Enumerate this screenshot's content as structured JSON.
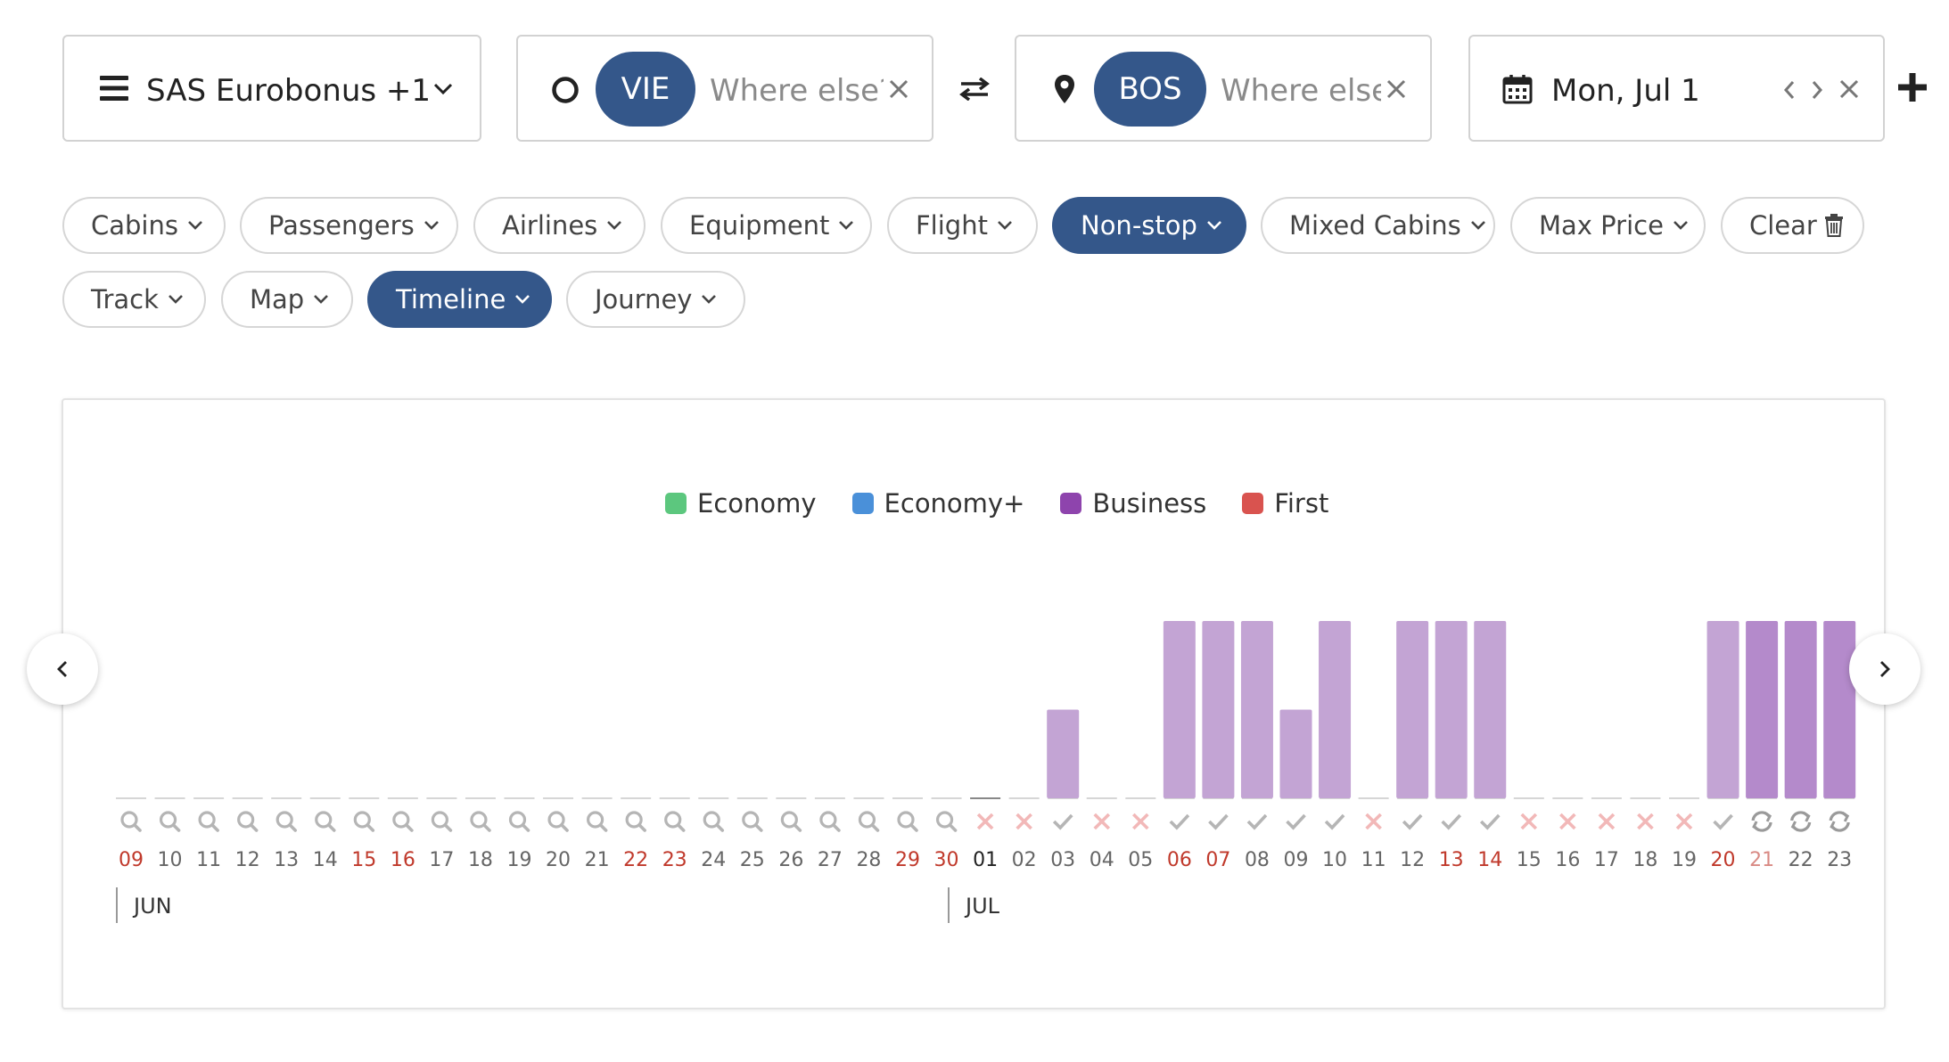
{
  "program_selector": {
    "label": "SAS Eurobonus +1"
  },
  "origin": {
    "code": "VIE",
    "placeholder": "Where else?"
  },
  "destination": {
    "code": "BOS",
    "placeholder": "Where else?"
  },
  "date": {
    "label": "Mon, Jul 1"
  },
  "filters": [
    {
      "label": "Cabins",
      "active": false
    },
    {
      "label": "Passengers",
      "active": false
    },
    {
      "label": "Airlines",
      "active": false
    },
    {
      "label": "Equipment",
      "active": false
    },
    {
      "label": "Flight",
      "active": false
    },
    {
      "label": "Non-stop",
      "active": true
    },
    {
      "label": "Mixed Cabins",
      "active": false
    },
    {
      "label": "Max Price",
      "active": false
    },
    {
      "label": "Clear",
      "active": false,
      "icon": "trash-icon"
    }
  ],
  "view_filters": [
    {
      "label": "Track",
      "active": false
    },
    {
      "label": "Map",
      "active": false
    },
    {
      "label": "Timeline",
      "active": true
    },
    {
      "label": "Journey",
      "active": false
    }
  ],
  "colors": {
    "accent": "#34578a",
    "economy": "#5cc77e",
    "economy_plus": "#4a90d9",
    "business": "#8e44ad",
    "first": "#d9534f",
    "bar_business": "#c3a4d4",
    "bar_business_dark": "#b48acb",
    "weekend_red": "#c0392b",
    "status_gray": "#b5b5b5",
    "status_x": "#f2b8b8"
  },
  "chart_data": {
    "type": "bar",
    "legend": [
      {
        "name": "Economy",
        "color": "#5cc77e"
      },
      {
        "name": "Economy+",
        "color": "#4a90d9"
      },
      {
        "name": "Business",
        "color": "#8e44ad"
      },
      {
        "name": "First",
        "color": "#d9534f"
      }
    ],
    "months": [
      {
        "label": "JUN",
        "start_index": 0
      },
      {
        "label": "JUL",
        "start_index": 22
      }
    ],
    "days": [
      {
        "day": "09",
        "weekend": true,
        "status": "search",
        "value": 0
      },
      {
        "day": "10",
        "weekend": false,
        "status": "search",
        "value": 0
      },
      {
        "day": "11",
        "weekend": false,
        "status": "search",
        "value": 0
      },
      {
        "day": "12",
        "weekend": false,
        "status": "search",
        "value": 0
      },
      {
        "day": "13",
        "weekend": false,
        "status": "search",
        "value": 0
      },
      {
        "day": "14",
        "weekend": false,
        "status": "search",
        "value": 0
      },
      {
        "day": "15",
        "weekend": true,
        "status": "search",
        "value": 0
      },
      {
        "day": "16",
        "weekend": true,
        "status": "search",
        "value": 0
      },
      {
        "day": "17",
        "weekend": false,
        "status": "search",
        "value": 0
      },
      {
        "day": "18",
        "weekend": false,
        "status": "search",
        "value": 0
      },
      {
        "day": "19",
        "weekend": false,
        "status": "search",
        "value": 0
      },
      {
        "day": "20",
        "weekend": false,
        "status": "search",
        "value": 0
      },
      {
        "day": "21",
        "weekend": false,
        "status": "search",
        "value": 0
      },
      {
        "day": "22",
        "weekend": true,
        "status": "search",
        "value": 0
      },
      {
        "day": "23",
        "weekend": true,
        "status": "search",
        "value": 0
      },
      {
        "day": "24",
        "weekend": false,
        "status": "search",
        "value": 0
      },
      {
        "day": "25",
        "weekend": false,
        "status": "search",
        "value": 0
      },
      {
        "day": "26",
        "weekend": false,
        "status": "search",
        "value": 0
      },
      {
        "day": "27",
        "weekend": false,
        "status": "search",
        "value": 0
      },
      {
        "day": "28",
        "weekend": false,
        "status": "search",
        "value": 0
      },
      {
        "day": "29",
        "weekend": true,
        "status": "search",
        "value": 0
      },
      {
        "day": "30",
        "weekend": true,
        "status": "search",
        "value": 0
      },
      {
        "day": "01",
        "weekend": false,
        "status": "none",
        "value": 0
      },
      {
        "day": "02",
        "weekend": false,
        "status": "none",
        "value": 0
      },
      {
        "day": "03",
        "weekend": false,
        "status": "check",
        "value": 1
      },
      {
        "day": "04",
        "weekend": false,
        "status": "none",
        "value": 0
      },
      {
        "day": "05",
        "weekend": false,
        "status": "none",
        "value": 0
      },
      {
        "day": "06",
        "weekend": true,
        "status": "check",
        "value": 2
      },
      {
        "day": "07",
        "weekend": true,
        "status": "check",
        "value": 2
      },
      {
        "day": "08",
        "weekend": false,
        "status": "check",
        "value": 2
      },
      {
        "day": "09",
        "weekend": false,
        "status": "check",
        "value": 1
      },
      {
        "day": "10",
        "weekend": false,
        "status": "check",
        "value": 2
      },
      {
        "day": "11",
        "weekend": false,
        "status": "none",
        "value": 0
      },
      {
        "day": "12",
        "weekend": false,
        "status": "check",
        "value": 2
      },
      {
        "day": "13",
        "weekend": true,
        "status": "check",
        "value": 2
      },
      {
        "day": "14",
        "weekend": true,
        "status": "check",
        "value": 2
      },
      {
        "day": "15",
        "weekend": false,
        "status": "none",
        "value": 0
      },
      {
        "day": "16",
        "weekend": false,
        "status": "none",
        "value": 0
      },
      {
        "day": "17",
        "weekend": false,
        "status": "none",
        "value": 0
      },
      {
        "day": "18",
        "weekend": false,
        "status": "none",
        "value": 0
      },
      {
        "day": "19",
        "weekend": false,
        "status": "none",
        "value": 0
      },
      {
        "day": "20",
        "weekend": true,
        "status": "check",
        "value": 2
      },
      {
        "day": "21",
        "weekend": true,
        "status": "loading",
        "value": 2
      },
      {
        "day": "22",
        "weekend": false,
        "status": "loading",
        "value": 2
      },
      {
        "day": "23",
        "weekend": false,
        "status": "loading",
        "value": 2
      }
    ]
  }
}
